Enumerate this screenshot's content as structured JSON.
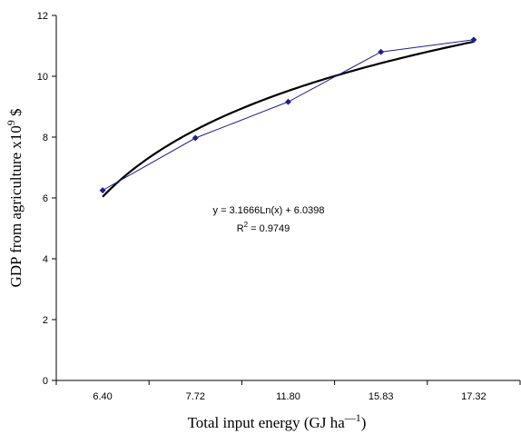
{
  "chart_data": {
    "type": "line",
    "categories": [
      "6.40",
      "7.72",
      "11.80",
      "15.83",
      "17.32"
    ],
    "series": [
      {
        "values": [
          6.25,
          7.97,
          9.16,
          10.8,
          11.2
        ],
        "color": "#1f1f8f"
      }
    ],
    "trendline": {
      "type": "logarithmic",
      "a": 3.1666,
      "b": 6.0398,
      "equation": "y = 3.1666Ln(x) + 6.0398",
      "r2_prefix": "R",
      "r2_exp": "2",
      "r2_value": " = 0.9749",
      "color": "#000000"
    },
    "ylim": [
      0,
      12
    ],
    "yticks": [
      0,
      2,
      4,
      6,
      8,
      10,
      12
    ],
    "xlabel": {
      "text": "Total input energy (GJ ha",
      "sup": "—",
      "sup_suffix": "1",
      "close": ")"
    },
    "ylabel": {
      "text": "GDP from agriculture x10",
      "sup": "9",
      "unit": " $"
    },
    "grid": false,
    "legend": "none"
  }
}
